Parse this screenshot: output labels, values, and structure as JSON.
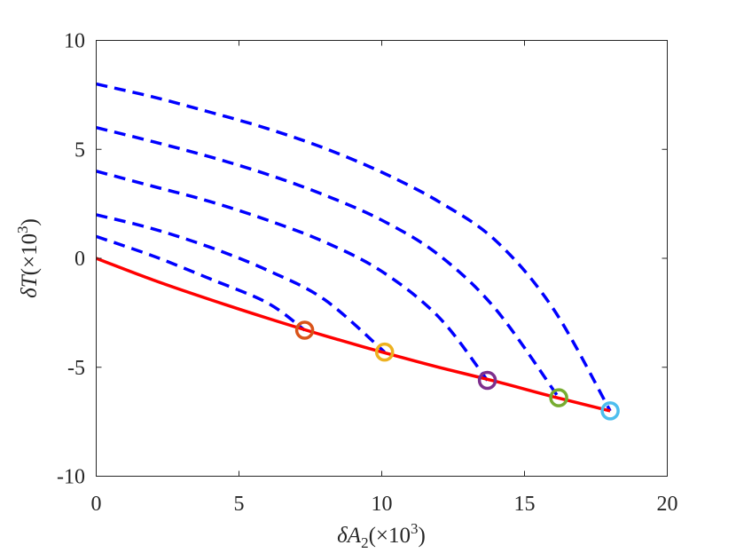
{
  "chart_data": {
    "type": "line",
    "title": "",
    "xlabel": {
      "main": "δA",
      "sub": "2",
      "suffix": "(×10",
      "sup": "3",
      "close": ")"
    },
    "ylabel": {
      "main": "δT",
      "suffix": "(×10",
      "sup": "3",
      "close": ")"
    },
    "xlim": [
      0,
      20
    ],
    "ylim": [
      -10,
      10
    ],
    "xticks": [
      0,
      5,
      10,
      15,
      20
    ],
    "xtick_labels": [
      "0",
      "5",
      "10",
      "15",
      "20"
    ],
    "yticks": [
      -10,
      -5,
      0,
      5,
      10
    ],
    "ytick_labels": [
      "-10",
      "-5",
      "0",
      "5",
      "10"
    ],
    "grid": false,
    "legend": "none",
    "main_curve": {
      "color": "#ff0000",
      "style": "solid",
      "x": [
        0,
        2,
        4,
        6,
        8,
        10,
        12,
        14,
        16,
        18
      ],
      "y": [
        0,
        -1.0,
        -1.9,
        -2.75,
        -3.55,
        -4.3,
        -5.0,
        -5.65,
        -6.35,
        -7.0
      ]
    },
    "dashed_curves": [
      {
        "color": "#0000ff",
        "x": [
          0,
          2,
          4,
          6,
          7.3
        ],
        "y": [
          1.0,
          0.1,
          -0.95,
          -2.05,
          -3.3
        ]
      },
      {
        "color": "#0000ff",
        "x": [
          0,
          2,
          4,
          6,
          8,
          10.1
        ],
        "y": [
          2.0,
          1.35,
          0.5,
          -0.55,
          -1.9,
          -4.3
        ]
      },
      {
        "color": "#0000ff",
        "x": [
          0,
          2,
          4,
          6,
          8,
          10,
          12,
          13.7
        ],
        "y": [
          4.0,
          3.3,
          2.6,
          1.75,
          0.75,
          -0.6,
          -2.7,
          -5.6
        ]
      },
      {
        "color": "#0000ff",
        "x": [
          0,
          2,
          4,
          6,
          8,
          10,
          12,
          14,
          16.2
        ],
        "y": [
          6.0,
          5.35,
          4.65,
          3.85,
          2.9,
          1.75,
          0.15,
          -2.35,
          -6.4
        ]
      },
      {
        "color": "#0000ff",
        "x": [
          0,
          2,
          4,
          6,
          8,
          10,
          12,
          14,
          16,
          18
        ],
        "y": [
          8.0,
          7.4,
          6.7,
          5.95,
          5.05,
          3.95,
          2.6,
          0.8,
          -2.3,
          -7.0
        ]
      }
    ],
    "markers": [
      {
        "x": 7.3,
        "y": -3.3,
        "color": "#d95319"
      },
      {
        "x": 10.1,
        "y": -4.3,
        "color": "#edb120"
      },
      {
        "x": 13.7,
        "y": -5.6,
        "color": "#7e2f8e"
      },
      {
        "x": 16.2,
        "y": -6.4,
        "color": "#77ac30"
      },
      {
        "x": 18.0,
        "y": -7.0,
        "color": "#4dbeee"
      }
    ]
  }
}
